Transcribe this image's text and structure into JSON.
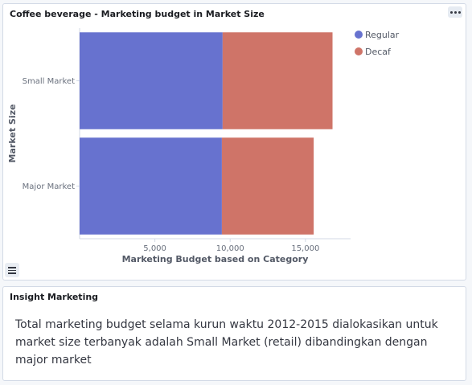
{
  "chart_panel": {
    "title": "Coffee beverage - Marketing budget in Market Size"
  },
  "insight_panel": {
    "title": "Insight Marketing",
    "body": "Total marketing budget selama kurun waktu 2012-2015 dialokasikan untuk market size terbanyak adalah Small Market (retail) dibandingkan dengan major market"
  },
  "icons": {
    "options": "options-ellipsis-icon",
    "legend_toggle": "legend-list-icon"
  },
  "chart_data": {
    "type": "bar",
    "orientation": "horizontal",
    "stacked": true,
    "categories": [
      "Small Market",
      "Major Market"
    ],
    "series": [
      {
        "name": "Regular",
        "color": "#6772cf",
        "values": [
          9500,
          9450
        ]
      },
      {
        "name": "Decaf",
        "color": "#cf7468",
        "values": [
          7300,
          6100
        ]
      }
    ],
    "xlabel": "Marketing Budget based on Category",
    "ylabel": "Market Size",
    "xlim": [
      0,
      18000
    ],
    "xticks": [
      5000,
      10000,
      15000
    ],
    "xtick_labels": [
      "5,000",
      "10,000",
      "15,000"
    ],
    "grid": false,
    "legend_position": "top-right"
  }
}
